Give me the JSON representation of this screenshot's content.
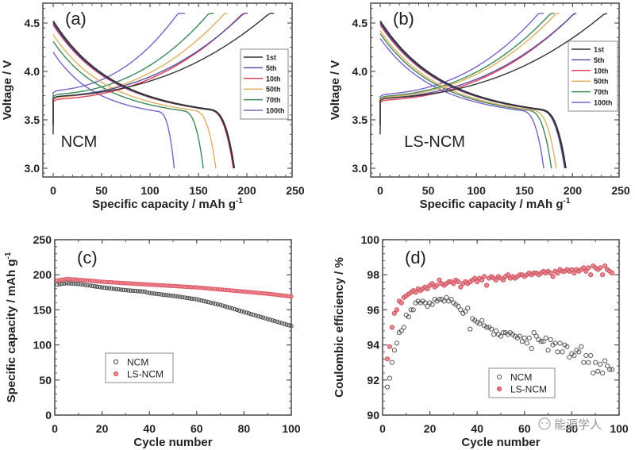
{
  "chart_data": [
    {
      "id": "a",
      "type": "line",
      "panel_label": "(a)",
      "sample_label": "NCM",
      "xlabel": "Specific capacity / mAh g",
      "xlabel_sup": "-1",
      "ylabel": "Voltage / V",
      "xlim": [
        0,
        250
      ],
      "ylim": [
        2.95,
        4.65
      ],
      "xticks": [
        "0",
        "50",
        "100",
        "150",
        "200",
        "250"
      ],
      "yticks": [
        "3.0",
        "3.5",
        "4.0",
        "4.5"
      ],
      "legend_position": "right",
      "series": [
        {
          "name": "1st",
          "color": "#333333",
          "charge_end": 228,
          "charge_start_v": 3.72,
          "discharge_end": 187,
          "discharge_start_v": 4.52
        },
        {
          "name": "5th",
          "color": "#5a4fa0",
          "charge_end": 201,
          "charge_start_v": 3.72,
          "discharge_end": 187,
          "discharge_start_v": 4.5
        },
        {
          "name": "10th",
          "color": "#e0405a",
          "charge_end": 197,
          "charge_start_v": 3.69,
          "discharge_end": 186,
          "discharge_start_v": 4.48
        },
        {
          "name": "50th",
          "color": "#e0b060",
          "charge_end": 180,
          "charge_start_v": 3.71,
          "discharge_end": 168,
          "discharge_start_v": 4.38
        },
        {
          "name": "70th",
          "color": "#3a8a5a",
          "charge_end": 166,
          "charge_start_v": 3.74,
          "discharge_end": 155,
          "discharge_start_v": 4.31
        },
        {
          "name": "100th",
          "color": "#7a60c8",
          "charge_end": 136,
          "charge_start_v": 3.78,
          "discharge_end": 125,
          "discharge_start_v": 4.2
        }
      ]
    },
    {
      "id": "b",
      "type": "line",
      "panel_label": "(b)",
      "sample_label": "LS-NCM",
      "xlabel": "Specific capacity / mAh g",
      "xlabel_sup": "-1",
      "ylabel": "Voltage / V",
      "xlim": [
        0,
        250
      ],
      "ylim": [
        2.95,
        4.65
      ],
      "xticks": [
        "0",
        "50",
        "100",
        "150",
        "200",
        "250"
      ],
      "yticks": [
        "3.0",
        "3.5",
        "4.0",
        "4.5"
      ],
      "legend_position": "right",
      "series": [
        {
          "name": "1st",
          "color": "#333333",
          "charge_end": 236,
          "charge_start_v": 3.7,
          "discharge_end": 193,
          "discharge_start_v": 4.52
        },
        {
          "name": "5th",
          "color": "#5a4fa0",
          "charge_end": 204,
          "charge_start_v": 3.7,
          "discharge_end": 192,
          "discharge_start_v": 4.5
        },
        {
          "name": "10th",
          "color": "#e0405a",
          "charge_end": 202,
          "charge_start_v": 3.68,
          "discharge_end": 192,
          "discharge_start_v": 4.48
        },
        {
          "name": "50th",
          "color": "#e0b060",
          "charge_end": 186,
          "charge_start_v": 3.71,
          "discharge_end": 183,
          "discharge_start_v": 4.42
        },
        {
          "name": "70th",
          "color": "#3a8a5a",
          "charge_end": 181,
          "charge_start_v": 3.72,
          "discharge_end": 178,
          "discharge_start_v": 4.39
        },
        {
          "name": "100th",
          "color": "#7a60c8",
          "charge_end": 170,
          "charge_start_v": 3.74,
          "discharge_end": 170,
          "discharge_start_v": 4.34
        }
      ]
    },
    {
      "id": "c",
      "type": "scatter",
      "panel_label": "(c)",
      "xlabel": "Cycle number",
      "ylabel": "Specific capacity / mAh g",
      "ylabel_sup": "-1",
      "xlim": [
        0,
        100
      ],
      "ylim": [
        0,
        250
      ],
      "xticks": [
        "0",
        "20",
        "40",
        "60",
        "80",
        "100"
      ],
      "yticks": [
        "0",
        "50",
        "100",
        "150",
        "200",
        "250"
      ],
      "legend_position": "lower-left",
      "series": [
        {
          "name": "NCM",
          "color": "#444444",
          "fill": "none",
          "keypoints": [
            [
              1,
              186
            ],
            [
              5,
              188
            ],
            [
              10,
              187
            ],
            [
              20,
              182
            ],
            [
              30,
              178
            ],
            [
              38,
              176
            ],
            [
              40,
              174
            ],
            [
              50,
              170
            ],
            [
              60,
              165
            ],
            [
              70,
              157
            ],
            [
              80,
              147
            ],
            [
              90,
              137
            ],
            [
              100,
              127
            ]
          ]
        },
        {
          "name": "LS-NCM",
          "color": "#e05060",
          "fill": "#e88890",
          "keypoints": [
            [
              1,
              192
            ],
            [
              5,
              194
            ],
            [
              10,
              193
            ],
            [
              20,
              190
            ],
            [
              30,
              188
            ],
            [
              40,
              186
            ],
            [
              50,
              184
            ],
            [
              60,
              182
            ],
            [
              70,
              179
            ],
            [
              80,
              176
            ],
            [
              90,
              173
            ],
            [
              100,
              169
            ]
          ]
        }
      ]
    },
    {
      "id": "d",
      "type": "scatter",
      "panel_label": "(d)",
      "xlabel": "Cycle number",
      "ylabel": "Coulombic efficiency / %",
      "xlim": [
        0,
        100
      ],
      "ylim": [
        90,
        100
      ],
      "xticks": [
        "0",
        "20",
        "40",
        "60",
        "80",
        "100"
      ],
      "yticks": [
        "90",
        "92",
        "94",
        "96",
        "98",
        "100"
      ],
      "legend_position": "lower-left",
      "series": [
        {
          "name": "NCM",
          "color": "#555555",
          "fill": "none",
          "values": [
            91.6,
            92.1,
            93.0,
            93.7,
            94.1,
            94.7,
            94.8,
            95.0,
            95.7,
            95.6,
            96.0,
            96.0,
            96.4,
            96.5,
            96.4,
            96.5,
            96.4,
            96.2,
            96.4,
            96.3,
            96.6,
            96.5,
            96.6,
            96.6,
            96.5,
            96.7,
            96.5,
            96.6,
            96.4,
            96.3,
            96.2,
            96.0,
            95.8,
            95.9,
            96.1,
            94.9,
            95.5,
            95.4,
            95.3,
            95.2,
            95.4,
            95.1,
            95.0,
            95.0,
            94.9,
            94.6,
            94.8,
            94.6,
            94.5,
            94.7,
            94.7,
            94.6,
            94.7,
            94.6,
            94.5,
            94.4,
            94.5,
            94.2,
            94.4,
            94.1,
            94.4,
            93.8,
            94.7,
            94.5,
            94.3,
            94.2,
            94.2,
            94.4,
            93.7,
            94.3,
            94.0,
            94.1,
            93.6,
            94.1,
            93.6,
            94.0,
            93.9,
            93.3,
            93.5,
            93.4,
            93.7,
            93.6,
            93.9,
            93.0,
            93.4,
            93.0,
            93.4,
            92.4,
            93.0,
            92.5,
            92.9,
            92.4,
            93.1,
            92.8,
            92.6,
            92.6
          ]
        },
        {
          "name": "LS-NCM",
          "color": "#d05060",
          "fill": "#e07880",
          "values": [
            93.2,
            93.9,
            95.0,
            95.8,
            96.0,
            96.5,
            96.4,
            96.7,
            96.8,
            96.9,
            97.0,
            97.1,
            97.0,
            97.2,
            97.1,
            97.2,
            97.3,
            97.2,
            97.4,
            97.5,
            97.3,
            97.4,
            97.7,
            97.5,
            97.4,
            97.5,
            97.6,
            97.6,
            97.5,
            97.7,
            97.6,
            97.3,
            97.5,
            97.6,
            97.5,
            97.6,
            97.7,
            97.8,
            97.6,
            97.8,
            97.7,
            97.9,
            97.4,
            97.8,
            97.9,
            97.8,
            97.7,
            97.9,
            97.8,
            97.7,
            97.9,
            98.0,
            97.8,
            97.9,
            97.8,
            97.9,
            98.0,
            98.0,
            97.9,
            98.0,
            98.1,
            98.0,
            98.1,
            98.1,
            98.0,
            98.1,
            98.2,
            98.1,
            98.2,
            98.1,
            97.9,
            98.2,
            98.1,
            98.3,
            98.2,
            98.2,
            98.3,
            98.2,
            98.3,
            98.1,
            98.3,
            98.2,
            98.3,
            98.4,
            98.2,
            98.4,
            98.0,
            98.5,
            98.4,
            98.3,
            98.4,
            98.0,
            98.5,
            98.3,
            98.2,
            98.1
          ]
        }
      ]
    }
  ],
  "watermark": "能源学人"
}
